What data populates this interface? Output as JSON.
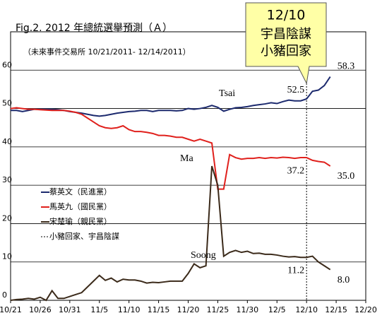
{
  "chart_data": {
    "type": "line",
    "title": "Fig.2. 2012 年總統選舉預測（Ａ）",
    "subtitle": "（未來事件交易所  10/21/2011- 12/14/2011）",
    "x": [
      "10/21",
      "10/22",
      "10/23",
      "10/24",
      "10/25",
      "10/26",
      "10/27",
      "10/28",
      "10/29",
      "10/30",
      "10/31",
      "11/1",
      "11/2",
      "11/3",
      "11/4",
      "11/5",
      "11/6",
      "11/7",
      "11/8",
      "11/9",
      "11/10",
      "11/11",
      "11/12",
      "11/13",
      "11/14",
      "11/15",
      "11/16",
      "11/17",
      "11/18",
      "11/19",
      "11/20",
      "11/21",
      "11/22",
      "11/23",
      "11/24",
      "11/25",
      "11/26",
      "11/27",
      "11/28",
      "11/29",
      "11/30",
      "12/1",
      "12/2",
      "12/3",
      "12/4",
      "12/5",
      "12/6",
      "12/7",
      "12/8",
      "12/9",
      "12/10",
      "12/11",
      "12/12",
      "12/13",
      "12/14"
    ],
    "xlim": [
      "10/21",
      "12/20"
    ],
    "xticks": [
      "10/21",
      "10/26",
      "10/31",
      "11/5",
      "11/10",
      "11/15",
      "11/20",
      "11/25",
      "11/30",
      "12/5",
      "12/10",
      "12/15",
      "12/20"
    ],
    "ylim": [
      0,
      70
    ],
    "yticks": [
      0,
      10,
      20,
      30,
      40,
      50,
      60
    ],
    "grid": true,
    "series": [
      {
        "name": "蔡英文（民進黨）",
        "short_name": "Tsai",
        "color": "#1c2a6e",
        "values": [
          49.5,
          49.5,
          49.2,
          49.5,
          49.8,
          49.8,
          49.8,
          49.8,
          49.7,
          49.5,
          49.2,
          49,
          48.8,
          48.5,
          48.2,
          48,
          48.2,
          48.5,
          48.8,
          49,
          49.2,
          49.3,
          49.5,
          49.5,
          49.2,
          49.5,
          49.5,
          49.5,
          49.4,
          49.5,
          50,
          49.8,
          50,
          50.3,
          50.8,
          50.3,
          49.3,
          49.8,
          50.2,
          50.3,
          50.5,
          50.8,
          51,
          51.2,
          51.5,
          51.3,
          51.8,
          52.2,
          52,
          52,
          52.5,
          54.5,
          54.8,
          56,
          58.3
        ],
        "value_labels": [
          null,
          null,
          null,
          null,
          null,
          null,
          null,
          null,
          null,
          null,
          null,
          null,
          null,
          null,
          null,
          null,
          null,
          null,
          null,
          null,
          null,
          null,
          null,
          null,
          null,
          null,
          null,
          null,
          null,
          null,
          null,
          null,
          null,
          null,
          null,
          null,
          null,
          null,
          null,
          null,
          null,
          null,
          null,
          null,
          null,
          null,
          null,
          null,
          null,
          null,
          "52.5",
          null,
          null,
          null,
          "58.3"
        ]
      },
      {
        "name": "馬英九（國民黨）",
        "short_name": "Ma",
        "color": "#e0201c",
        "values": [
          50,
          50.2,
          50,
          49.8,
          49.8,
          49.7,
          49.6,
          49.5,
          49.5,
          49.5,
          49.3,
          49,
          48.5,
          47.5,
          46.5,
          45.5,
          45,
          44.8,
          45,
          45.5,
          44.5,
          44,
          44,
          43.8,
          43.5,
          43,
          43,
          42.8,
          42.5,
          42.5,
          42,
          41.5,
          42,
          41.5,
          41,
          29,
          29,
          38,
          37.2,
          36.8,
          37,
          37,
          37.2,
          37,
          37.2,
          37.1,
          37.3,
          37.2,
          37,
          37.2,
          37.2,
          36.5,
          36.2,
          36,
          35
        ],
        "value_labels": [
          null,
          null,
          null,
          null,
          null,
          null,
          null,
          null,
          null,
          null,
          null,
          null,
          null,
          null,
          null,
          null,
          null,
          null,
          null,
          null,
          null,
          null,
          null,
          null,
          null,
          null,
          null,
          null,
          null,
          null,
          null,
          null,
          null,
          null,
          null,
          null,
          null,
          null,
          null,
          null,
          null,
          null,
          null,
          null,
          null,
          null,
          null,
          null,
          null,
          null,
          "37.2",
          null,
          null,
          null,
          "35.0"
        ]
      },
      {
        "name": "宋楚瑜（親民黨）",
        "short_name": "Soong",
        "color": "#3b2a1a",
        "values": [
          0,
          0.2,
          0.3,
          0.5,
          0.3,
          0.8,
          0,
          2.5,
          0.5,
          0.5,
          1,
          1.5,
          2,
          3.5,
          5,
          6.5,
          5.2,
          5.8,
          4.8,
          5.5,
          5.3,
          5.3,
          5,
          4.5,
          4.7,
          4.6,
          4.8,
          5,
          5,
          5,
          7,
          9.5,
          8.5,
          9,
          35,
          30,
          11.5,
          12.5,
          13,
          12.5,
          12.8,
          12.2,
          12.3,
          12,
          12,
          11.8,
          11.5,
          11.3,
          11.4,
          11.2,
          11.2,
          11.5,
          10,
          9,
          8
        ],
        "value_labels": [
          null,
          null,
          null,
          null,
          null,
          null,
          null,
          null,
          null,
          null,
          null,
          null,
          null,
          null,
          null,
          null,
          null,
          null,
          null,
          null,
          null,
          null,
          null,
          null,
          null,
          null,
          null,
          null,
          null,
          null,
          null,
          null,
          null,
          null,
          null,
          null,
          null,
          null,
          null,
          null,
          null,
          null,
          null,
          null,
          null,
          null,
          null,
          null,
          null,
          null,
          "11.2",
          null,
          null,
          null,
          "8.0"
        ]
      }
    ],
    "event": {
      "x": "12/10",
      "name": "小豬回家、宇昌陰謀",
      "callout": [
        "宇昌陰謀",
        "小豬回家"
      ]
    }
  }
}
